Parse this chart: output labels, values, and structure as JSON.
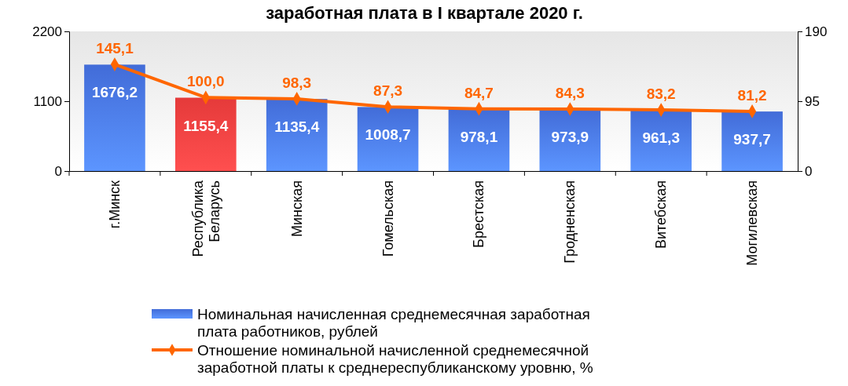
{
  "chart_data": {
    "type": "bar",
    "title": "заработная плата в I квартале 2020 г.",
    "categories": [
      "г.Минск",
      "Республика Беларусь",
      "Минская",
      "Гомельская",
      "Брестская",
      "Гродненская",
      "Витебская",
      "Могилевская"
    ],
    "series": [
      {
        "name": "Номинальная начисленная среднемесячная заработная плата работников, рублей",
        "color": "#4a78f0",
        "colors": [
          "#4a78f0",
          "#ff4040",
          "#4a78f0",
          "#4a78f0",
          "#4a78f0",
          "#4a78f0",
          "#4a78f0",
          "#4a78f0"
        ],
        "values": [
          1676.2,
          1155.4,
          1135.4,
          1008.7,
          978.1,
          973.9,
          961.3,
          937.7
        ]
      },
      {
        "name": "Отношение номинальной начисленной среднемесячной заработной платы к среднереспубликанскому уровню, %",
        "type": "line",
        "axis": "y2",
        "color": "#ff6600",
        "marker": "diamond",
        "values": [
          145.1,
          100.0,
          98.3,
          87.3,
          84.7,
          84.3,
          83.2,
          81.2
        ]
      }
    ],
    "value_labels": [
      [
        "1676,2",
        "1155,4",
        "1135,4",
        "1008,7",
        "978,1",
        "973,9",
        "961,3",
        "937,7"
      ],
      [
        "145,1",
        "100,0",
        "98,3",
        "87,3",
        "84,7",
        "84,3",
        "83,2",
        "81,2"
      ]
    ],
    "ylim": [
      0,
      2200
    ],
    "yticks": [
      0,
      1100,
      2200
    ],
    "y2lim": [
      0,
      190
    ],
    "y2ticks": [
      0,
      95,
      190
    ],
    "grid": false,
    "legend": "bottom"
  }
}
